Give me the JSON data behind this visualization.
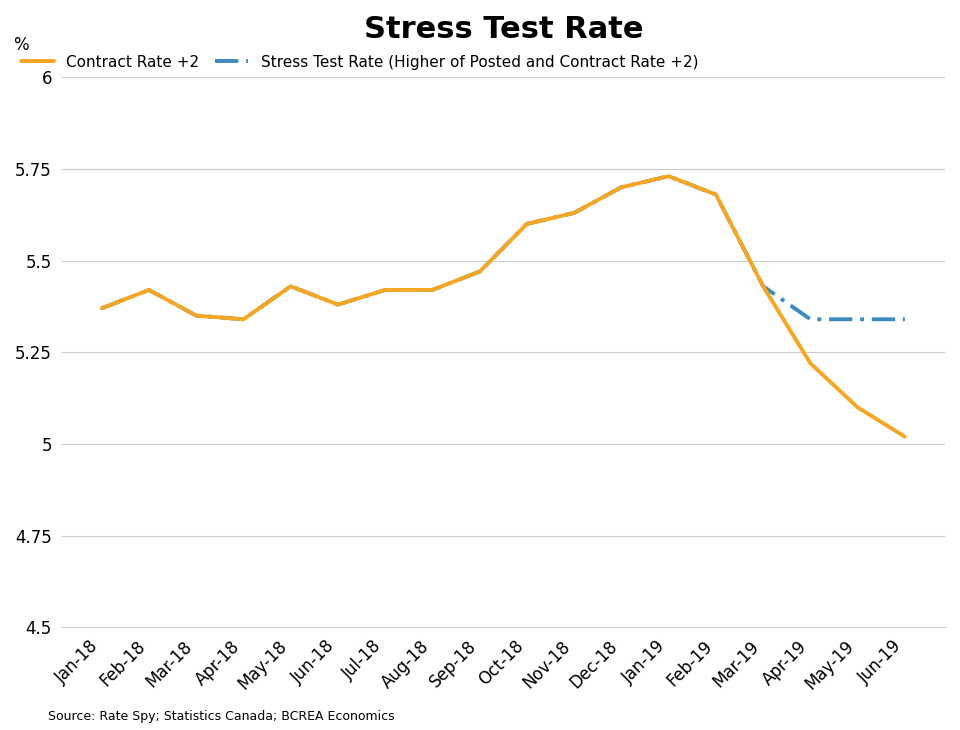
{
  "title": "Stress Test Rate",
  "ylabel": "%",
  "source": "Source: Rate Spy; Statistics Canada; BCREA Economics",
  "ylim": [
    4.5,
    6.05
  ],
  "yticks": [
    4.5,
    4.75,
    5.0,
    5.25,
    5.5,
    5.75,
    6.0
  ],
  "ytick_labels": [
    "4.5",
    "4.75",
    "5",
    "5.25",
    "5.5",
    "5.75",
    "6"
  ],
  "background_color": "#ffffff",
  "x_labels": [
    "Jan-18",
    "Feb-18",
    "Mar-18",
    "Apr-18",
    "May-18",
    "Jun-18",
    "Jul-18",
    "Aug-18",
    "Sep-18",
    "Oct-18",
    "Nov-18",
    "Dec-18",
    "Jan-19",
    "Feb-19",
    "Mar-19",
    "Apr-19",
    "May-19",
    "Jun-19"
  ],
  "contract_rate_plus2": [
    5.37,
    5.42,
    5.35,
    5.34,
    5.43,
    5.38,
    5.42,
    5.42,
    5.47,
    5.6,
    5.63,
    5.7,
    5.73,
    5.68,
    5.43,
    5.22,
    5.1,
    5.02
  ],
  "stress_test_rate": [
    5.37,
    5.42,
    5.35,
    5.34,
    5.43,
    5.38,
    5.42,
    5.42,
    5.47,
    5.6,
    5.63,
    5.7,
    5.73,
    5.68,
    5.43,
    5.34,
    5.34,
    5.34
  ],
  "contract_color": "#f5a623",
  "stress_color": "#3d8bbf",
  "legend_label_contract": "Contract Rate +2",
  "legend_label_stress": "Stress Test Rate (Higher of Posted and Contract Rate +2)",
  "title_fontsize": 22,
  "title_fontweight": "bold",
  "tick_fontsize": 12,
  "legend_fontsize": 11,
  "source_fontsize": 9,
  "linewidth": 2.8
}
